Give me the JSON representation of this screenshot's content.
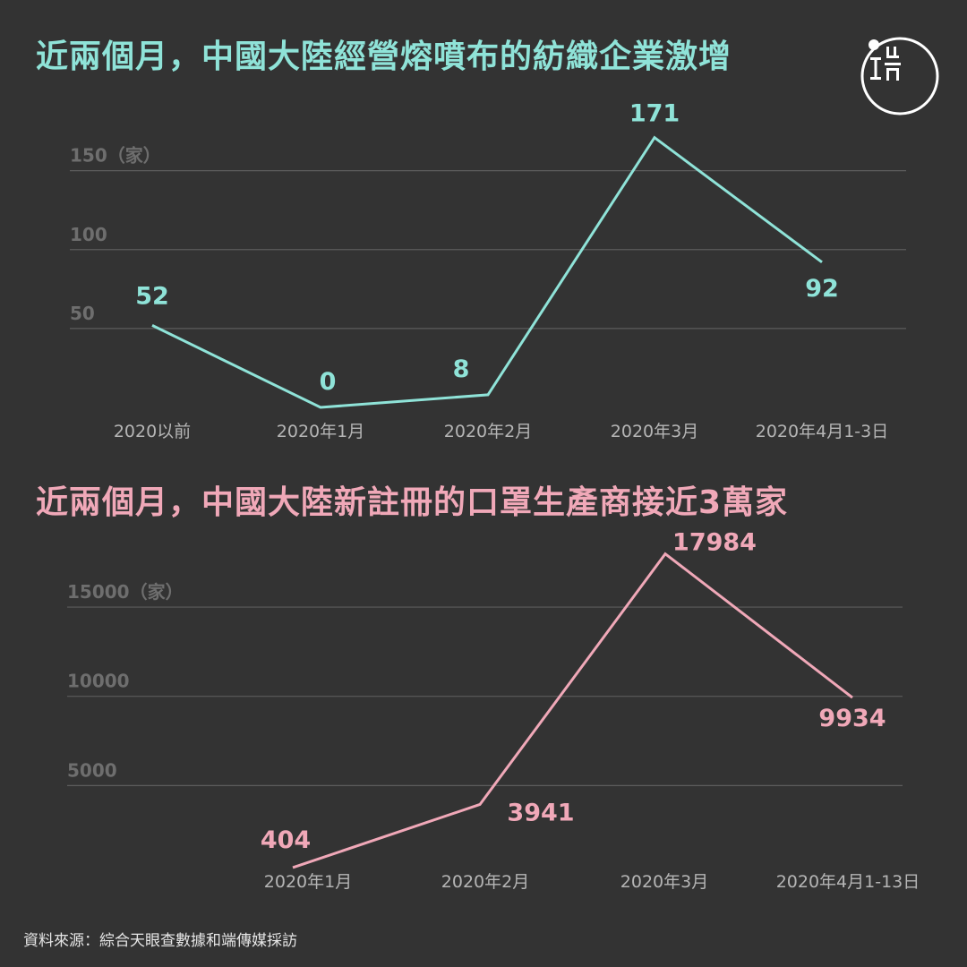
{
  "chart_data": [
    {
      "type": "line",
      "title": "近兩個月，中國大陸經營熔噴布的紡織企業激增",
      "categories": [
        "2020以前",
        "2020年1月",
        "2020年2月",
        "2020年3月",
        "2020年4月1-3日"
      ],
      "values": [
        52,
        0,
        8,
        171,
        92
      ],
      "data_labels": [
        "52",
        "0",
        "8",
        "171",
        "92"
      ],
      "yticks": [
        {
          "value": 50,
          "label": "50"
        },
        {
          "value": 100,
          "label": "100"
        },
        {
          "value": 150,
          "label": "150（家）"
        }
      ],
      "ylim": [
        0,
        171
      ],
      "grid": true,
      "color": "#8fe3d8"
    },
    {
      "type": "line",
      "title": "近兩個月，中國大陸新註冊的口罩生產商接近3萬家",
      "categories": [
        "2020年1月",
        "2020年2月",
        "2020年3月",
        "2020年4月1-13日"
      ],
      "values": [
        404,
        3941,
        17984,
        9934
      ],
      "data_labels": [
        "404",
        "3941",
        "17984",
        "9934"
      ],
      "yticks": [
        {
          "value": 5000,
          "label": "5000"
        },
        {
          "value": 10000,
          "label": "10000"
        },
        {
          "value": 15000,
          "label": "15000（家）"
        }
      ],
      "ylim": [
        0,
        17984
      ],
      "grid": true,
      "color": "#f0a8b8"
    }
  ],
  "source": "資料來源：綜合天眼查數據和端傳媒採訪",
  "logo": {
    "icon": "initium-logo",
    "color": "#ffffff"
  }
}
